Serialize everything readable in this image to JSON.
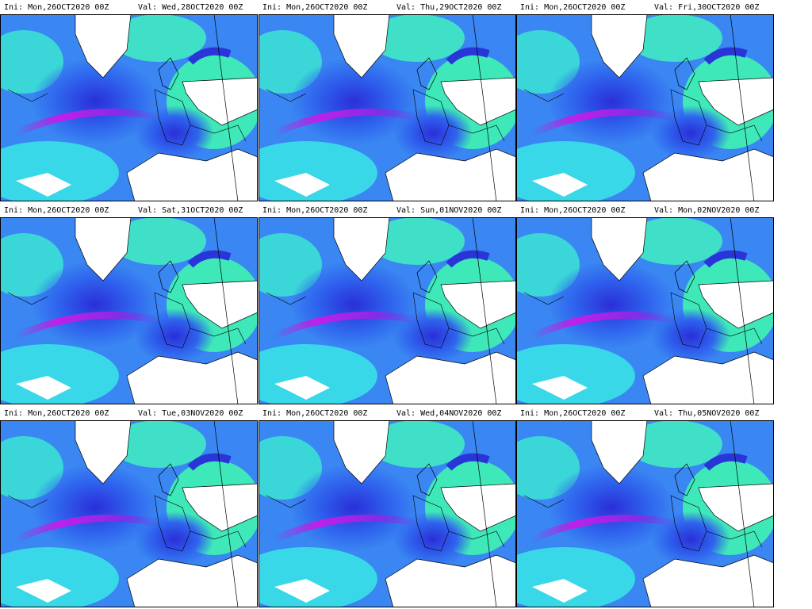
{
  "panels": [
    {
      "init": "Ini: Mon,26OCT2020 00Z",
      "valid": "Val: Wed,28OCT2020 00Z"
    },
    {
      "init": "Ini: Mon,26OCT2020 00Z",
      "valid": "Val: Thu,29OCT2020 00Z"
    },
    {
      "init": "Ini: Mon,26OCT2020 00Z",
      "valid": "Val: Fri,30OCT2020 00Z"
    },
    {
      "init": "Ini: Mon,26OCT2020 00Z",
      "valid": "Val: Sat,31OCT2020 00Z"
    },
    {
      "init": "Ini: Mon,26OCT2020 00Z",
      "valid": "Val: Sun,01NOV2020 00Z"
    },
    {
      "init": "Ini: Mon,26OCT2020 00Z",
      "valid": "Val: Mon,02NOV2020 00Z"
    },
    {
      "init": "Ini: Mon,26OCT2020 00Z",
      "valid": "Val: Tue,03NOV2020 00Z"
    },
    {
      "init": "Ini: Mon,26OCT2020 00Z",
      "valid": "Val: Wed,04NOV2020 00Z"
    },
    {
      "init": "Ini: Mon,26OCT2020 00Z",
      "valid": "Val: Thu,05NOV2020 00Z"
    }
  ]
}
